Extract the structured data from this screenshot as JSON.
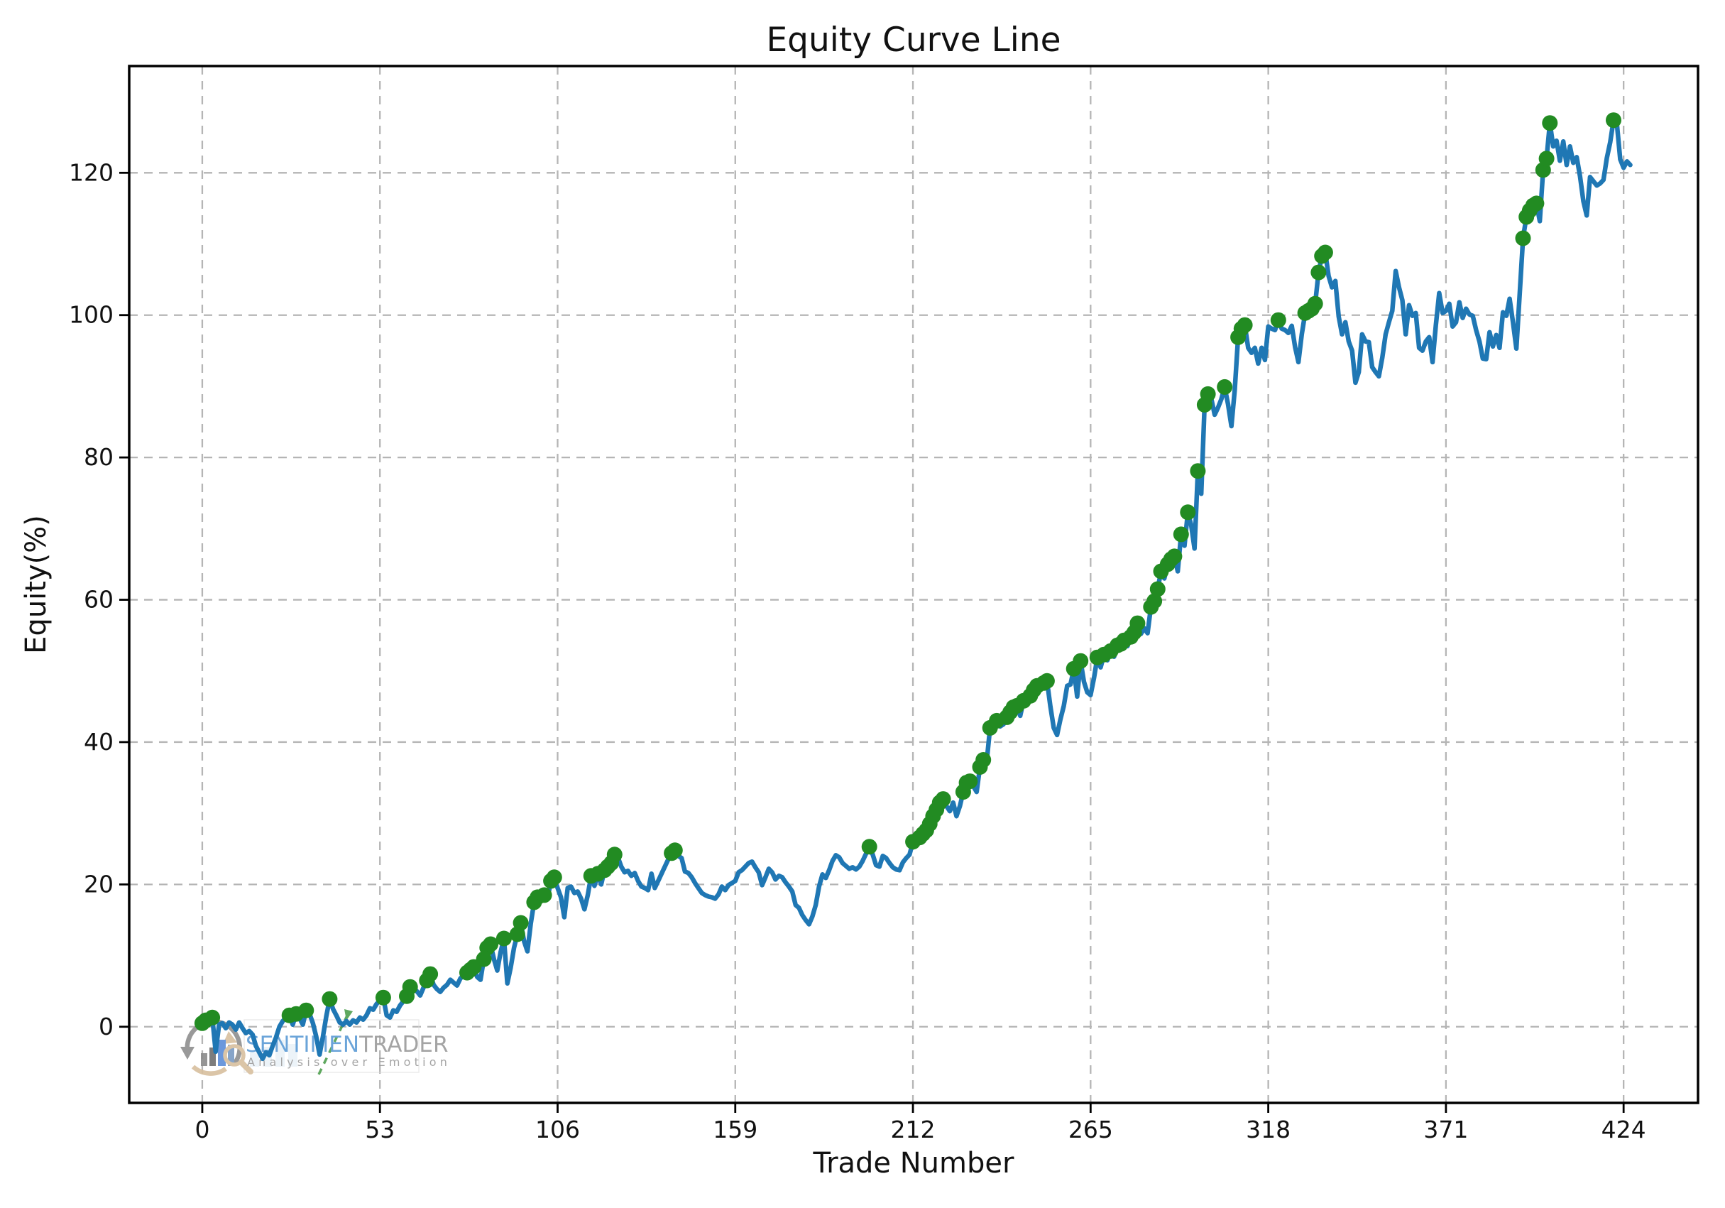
{
  "title": "Equity Curve Line",
  "watermark": {
    "brand_blue": "SENTIMEN",
    "brand_gray": "TRADER",
    "tagline": "Analysis over Emotion",
    "brand_blue_color": "#5b9bd5",
    "brand_gray_color": "#9b9b9b",
    "tagline_color": "#9b9b9b",
    "logo_arrow_gray": "#8f8f8f",
    "logo_beige": "#d8bf9e",
    "logo_bar_blue": "#5b8dd9",
    "logo_bar_gray": "#8a8a8a",
    "logo_trend_green": "#2f8f2f"
  },
  "chart_data": {
    "type": "line",
    "title": "Equity Curve Line",
    "xlabel": "Trade Number",
    "ylabel": "Equity(%)",
    "x_ticks": [
      0,
      53,
      106,
      159,
      212,
      265,
      318,
      371,
      424
    ],
    "y_ticks": [
      0,
      20,
      40,
      60,
      80,
      100,
      120
    ],
    "xlim": [
      -21.8,
      446.2
    ],
    "ylim": [
      -10.7,
      135.0
    ],
    "grid": {
      "on": true,
      "style": "dashed",
      "color": "#b5b5b5"
    },
    "x_start": 0,
    "x_step": 1,
    "series": [
      {
        "name": "equity",
        "color": "#1f77b4",
        "values": [
          0.5,
          0.9,
          0.4,
          1.3,
          -3.5,
          0.3,
          0.5,
          -0.2,
          0.6,
          0.3,
          -0.4,
          0.6,
          -0.2,
          -0.9,
          -0.6,
          -1.1,
          -2.7,
          -3.6,
          -4.5,
          -3.6,
          -4.0,
          -2.7,
          -1.5,
          0.0,
          0.8,
          1.3,
          1.6,
          0.3,
          1.8,
          1.2,
          0.3,
          2.3,
          1.8,
          0.5,
          -1.4,
          -3.9,
          -1.4,
          1.5,
          3.9,
          2.5,
          1.6,
          0.6,
          0.3,
          0.8,
          0.3,
          0.9,
          0.6,
          1.3,
          1.0,
          1.6,
          2.6,
          2.4,
          3.2,
          3.7,
          4.1,
          1.6,
          1.3,
          2.3,
          2.1,
          3.0,
          3.6,
          4.3,
          5.6,
          5.5,
          5.0,
          4.4,
          5.5,
          6.5,
          7.4,
          5.9,
          5.3,
          4.9,
          5.5,
          5.9,
          6.6,
          6.2,
          5.8,
          6.8,
          7.2,
          7.6,
          8.0,
          8.4,
          7.0,
          6.6,
          9.5,
          11.1,
          11.6,
          9.5,
          7.9,
          10.5,
          12.4,
          6.1,
          8.3,
          11.1,
          13.0,
          14.6,
          12.0,
          10.6,
          14.5,
          17.5,
          18.2,
          18.0,
          18.5,
          18.0,
          20.5,
          21.0,
          19.5,
          18.2,
          15.4,
          19.5,
          19.7,
          18.8,
          19.0,
          18.0,
          16.5,
          18.5,
          21.2,
          19.8,
          21.5,
          20.0,
          22.0,
          22.5,
          23.0,
          24.2,
          23.8,
          22.5,
          21.7,
          21.9,
          21.2,
          21.6,
          20.5,
          19.7,
          19.5,
          19.2,
          21.5,
          19.5,
          20.5,
          21.5,
          22.5,
          23.5,
          24.4,
          24.8,
          24.0,
          23.7,
          21.8,
          21.6,
          21.0,
          20.2,
          19.5,
          18.8,
          18.5,
          18.3,
          18.2,
          18.0,
          18.6,
          19.7,
          19.2,
          19.9,
          20.2,
          20.5,
          21.7,
          22.0,
          22.5,
          23.0,
          23.2,
          22.4,
          21.7,
          19.9,
          21.0,
          22.2,
          21.7,
          20.7,
          21.2,
          21.0,
          20.3,
          19.7,
          19.0,
          17.1,
          16.7,
          15.7,
          15.0,
          14.4,
          15.5,
          17.1,
          19.7,
          21.4,
          20.9,
          22.0,
          23.3,
          24.1,
          23.8,
          23.0,
          22.6,
          22.2,
          22.4,
          22.1,
          22.5,
          23.3,
          24.3,
          25.3,
          24.2,
          22.7,
          22.5,
          24.0,
          23.7,
          23.0,
          22.4,
          22.1,
          22.0,
          23.1,
          23.7,
          24.2,
          26.0,
          25.5,
          26.6,
          27.1,
          27.6,
          28.5,
          29.6,
          30.5,
          31.5,
          32.0,
          31.0,
          30.3,
          31.5,
          29.6,
          31.0,
          33.0,
          34.3,
          34.5,
          33.8,
          33.0,
          36.5,
          37.5,
          37.2,
          42.0,
          41.9,
          43.0,
          42.2,
          42.5,
          43.5,
          44.2,
          44.9,
          45.1,
          43.7,
          45.8,
          45.4,
          46.5,
          47.3,
          47.9,
          47.6,
          48.3,
          48.6,
          45.0,
          42.0,
          41.0,
          43.2,
          45.1,
          47.9,
          48.1,
          50.3,
          46.4,
          51.4,
          48.5,
          47.0,
          46.6,
          49.0,
          51.9,
          50.5,
          52.3,
          51.5,
          52.8,
          52.0,
          53.6,
          53.8,
          54.3,
          53.5,
          54.8,
          55.4,
          56.7,
          55.2,
          56.0,
          55.3,
          59.0,
          59.8,
          61.5,
          64.0,
          63.0,
          65.0,
          65.7,
          66.1,
          64.0,
          69.2,
          67.6,
          72.3,
          70.5,
          67.2,
          78.1,
          74.9,
          87.4,
          88.9,
          88.3,
          86.0,
          87.0,
          88.2,
          89.9,
          87.5,
          84.4,
          89.5,
          96.9,
          98.1,
          98.6,
          95.4,
          94.7,
          95.4,
          93.2,
          95.4,
          93.7,
          98.4,
          98.1,
          97.9,
          99.3,
          98.1,
          97.9,
          97.5,
          98.5,
          95.5,
          93.4,
          97.3,
          100.3,
          100.6,
          100.9,
          101.6,
          106.0,
          108.3,
          108.8,
          105.5,
          103.9,
          104.8,
          99.8,
          97.3,
          99.0,
          96.3,
          95.0,
          90.5,
          92.0,
          97.3,
          96.3,
          96.2,
          92.7,
          92.0,
          91.4,
          94.0,
          97.3,
          99.0,
          100.6,
          106.2,
          103.9,
          102.1,
          97.3,
          101.4,
          99.9,
          100.3,
          95.4,
          95.0,
          96.3,
          96.9,
          93.4,
          98.6,
          103.1,
          100.3,
          100.6,
          101.6,
          98.4,
          99.0,
          101.8,
          99.6,
          100.9,
          100.1,
          99.9,
          97.9,
          96.3,
          93.9,
          93.8,
          97.6,
          95.6,
          97.2,
          95.4,
          100.4,
          99.9,
          102.3,
          99.0,
          95.3,
          103.0,
          110.8,
          113.8,
          114.7,
          115.4,
          115.7,
          113.2,
          120.4,
          122.0,
          127.0,
          123.7,
          124.5,
          121.7,
          124.4,
          121.1,
          123.7,
          121.4,
          122.2,
          119.5,
          116.0,
          114.0,
          119.4,
          118.8,
          118.2,
          118.5,
          119.0,
          122.1,
          124.3,
          127.4,
          126.9,
          121.9,
          120.7,
          121.6,
          121.1
        ]
      }
    ],
    "markers": {
      "shape": "circle",
      "color": "#228B22",
      "meaning": "new equity high (running maximum)",
      "rule": "running_max"
    },
    "axis_color": "#000000",
    "legend": null
  }
}
